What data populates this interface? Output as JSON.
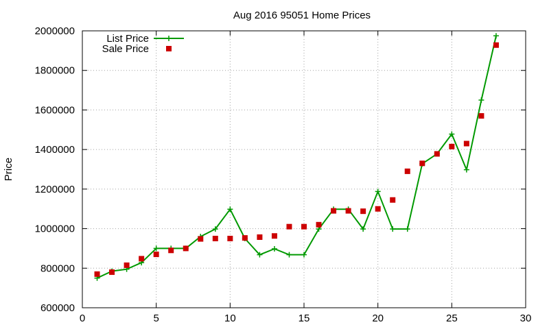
{
  "chart_data": {
    "type": "line",
    "title": "Aug 2016 95051 Home Prices",
    "xlabel": "",
    "ylabel": "Price",
    "xlim": [
      0,
      30
    ],
    "ylim": [
      600000,
      2000000
    ],
    "x_ticks": [
      0,
      5,
      10,
      15,
      20,
      25,
      30
    ],
    "y_ticks": [
      600000,
      800000,
      1000000,
      1200000,
      1400000,
      1600000,
      1800000,
      2000000
    ],
    "grid": true,
    "legend_position": "top-left",
    "series": [
      {
        "name": "List Price",
        "style": "line-with-plus-markers",
        "color": "#009900",
        "x": [
          1,
          2,
          3,
          4,
          5,
          6,
          7,
          8,
          9,
          10,
          11,
          12,
          13,
          14,
          15,
          16,
          17,
          18,
          19,
          20,
          21,
          22,
          23,
          24,
          25,
          26,
          27,
          28
        ],
        "values": [
          750000,
          785000,
          795000,
          828000,
          900000,
          900000,
          900000,
          960000,
          998000,
          1098000,
          950000,
          868000,
          898000,
          868000,
          868000,
          998000,
          1098000,
          1098000,
          998000,
          1188000,
          998000,
          998000,
          1328000,
          1378000,
          1478000,
          1298000,
          1650000,
          1975000
        ]
      },
      {
        "name": "Sale Price",
        "style": "square-markers",
        "color": "#cc0000",
        "x": [
          1,
          2,
          3,
          4,
          5,
          6,
          7,
          8,
          9,
          10,
          11,
          12,
          13,
          14,
          15,
          16,
          17,
          18,
          19,
          20,
          21,
          22,
          23,
          24,
          25,
          26,
          27,
          28
        ],
        "values": [
          770000,
          780000,
          815000,
          848000,
          870000,
          890000,
          900000,
          948000,
          950000,
          950000,
          953000,
          957000,
          963000,
          1010000,
          1010000,
          1020000,
          1090000,
          1090000,
          1088000,
          1100000,
          1145000,
          1290000,
          1330000,
          1378000,
          1415000,
          1430000,
          1570000,
          1928000
        ]
      }
    ]
  }
}
